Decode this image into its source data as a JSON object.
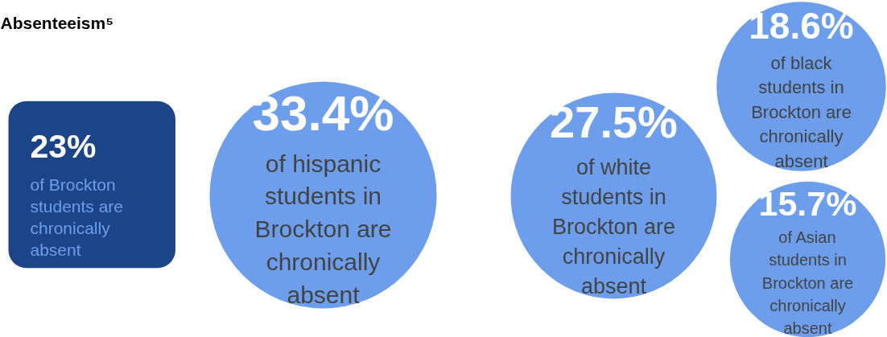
{
  "chart_data": {
    "type": "other",
    "title": "Absenteeism⁵",
    "categories": [
      "of Brockton students are chronically absent",
      "of hispanic students in Brockton are chronically absent",
      "of white students in Brockton are chronically absent",
      "of black students in Brockton are chronically absent",
      "of Asian students in Brockton are chronically absent"
    ],
    "values": [
      23,
      33.4,
      27.5,
      18.6,
      15.7
    ],
    "value_labels": [
      "23%",
      "33.4%",
      "27.5%",
      "18.6%",
      "15.7%"
    ],
    "colors": [
      "#1c4587",
      "#6d9eeb",
      "#6d9eeb",
      "#6d9eeb",
      "#6d9eeb"
    ]
  }
}
